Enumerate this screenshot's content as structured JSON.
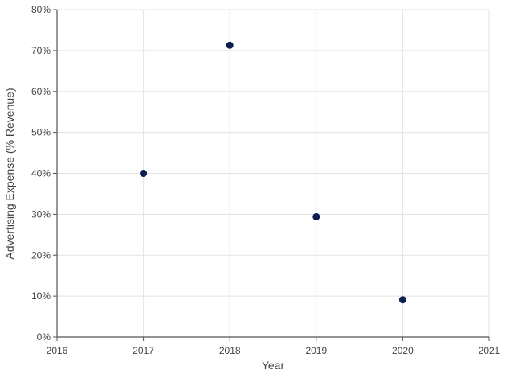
{
  "chart_data": {
    "type": "scatter",
    "title": "",
    "xlabel": "Year",
    "ylabel": "Advertising Expense (% Revenue)",
    "xlim": [
      2016,
      2021
    ],
    "ylim": [
      0,
      80
    ],
    "x_ticks": [
      2016,
      2017,
      2018,
      2019,
      2020,
      2021
    ],
    "y_ticks": [
      0,
      10,
      20,
      30,
      40,
      50,
      60,
      70,
      80
    ],
    "y_tick_suffix": "%",
    "grid": true,
    "legend": "none",
    "point_color": "#0d1f4f",
    "series": [
      {
        "x": [
          2017,
          2018,
          2019,
          2020
        ],
        "y": [
          40,
          71.3,
          29.4,
          9.1
        ]
      }
    ]
  }
}
